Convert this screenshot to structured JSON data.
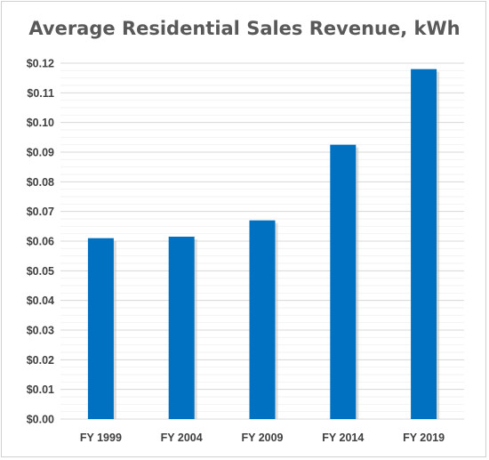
{
  "chart_data": {
    "type": "bar",
    "title": "Average Residential Sales Revenue, kWh",
    "xlabel": "",
    "ylabel": "",
    "categories": [
      "FY 1999",
      "FY 2004",
      "FY 2009",
      "FY 2014",
      "FY 2019"
    ],
    "values": [
      0.061,
      0.0615,
      0.067,
      0.0925,
      0.118
    ],
    "ylim": [
      0,
      0.12
    ],
    "yticks": [
      "$0.00",
      "$0.01",
      "$0.02",
      "$0.03",
      "$0.04",
      "$0.05",
      "$0.06",
      "$0.07",
      "$0.08",
      "$0.09",
      "$0.10",
      "$0.11",
      "$0.12"
    ],
    "ytick_values": [
      0,
      0.01,
      0.02,
      0.03,
      0.04,
      0.05,
      0.06,
      0.07,
      0.08,
      0.09,
      0.1,
      0.11,
      0.12
    ],
    "grid": true,
    "legend": "none",
    "colors": {
      "bar": "#0070c0",
      "grid": "#d9d9d9",
      "text": "#404040",
      "title": "#595959"
    }
  }
}
